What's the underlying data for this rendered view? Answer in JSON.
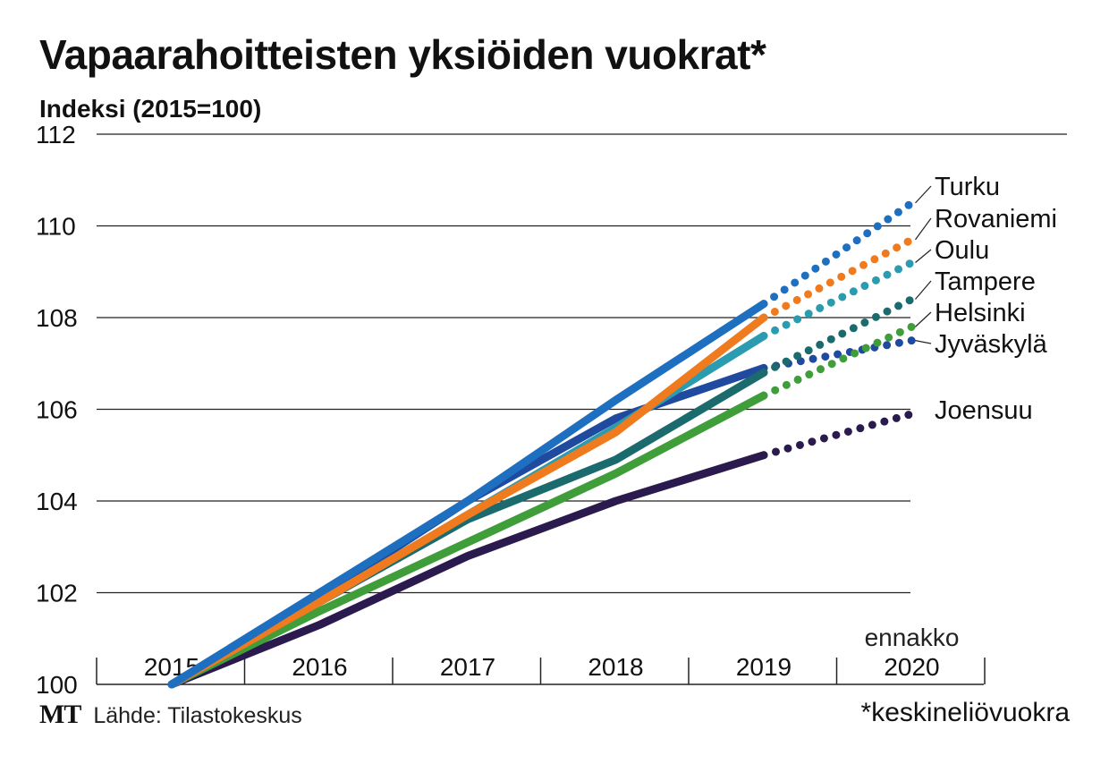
{
  "title": "Vapaarahoitteisten yksiöiden vuokrat*",
  "subtitle": "Indeksi (2015=100)",
  "source": {
    "logo": "MT",
    "text": "Lähde: Tilastokeskus"
  },
  "footnote": "*keskineliövuokra",
  "chart_data": {
    "type": "line",
    "title": "Vapaarahoitteisten yksiöiden vuokrat*",
    "ylabel": "Indeksi (2015=100)",
    "xlabel": "",
    "x": [
      "2015",
      "2016",
      "2017",
      "2018",
      "2019",
      "2020"
    ],
    "ylim": [
      100,
      112
    ],
    "yticks": [
      "100",
      "102",
      "104",
      "106",
      "108",
      "110",
      "112"
    ],
    "grid": true,
    "forecast_label": "ennakko",
    "forecast_from": "2019",
    "forecast_style": "dotted",
    "series": [
      {
        "name": "Turku",
        "color": "#1f6fc0",
        "values": [
          100,
          102.0,
          104.0,
          106.2,
          108.3,
          110.5
        ]
      },
      {
        "name": "Rovaniemi",
        "color": "#f07a1e",
        "values": [
          100,
          101.8,
          103.7,
          105.5,
          108.0,
          109.7
        ]
      },
      {
        "name": "Oulu",
        "color": "#2b9bb0",
        "values": [
          100,
          101.8,
          103.7,
          105.6,
          107.6,
          109.2
        ]
      },
      {
        "name": "Tampere",
        "color": "#1b6b6e",
        "values": [
          100,
          101.8,
          103.6,
          104.9,
          106.8,
          108.4
        ]
      },
      {
        "name": "Helsinki",
        "color": "#3f9e3a",
        "values": [
          100,
          101.6,
          103.1,
          104.6,
          106.3,
          107.8
        ]
      },
      {
        "name": "Jyväskylä",
        "color": "#1f4aa0",
        "values": [
          100,
          101.9,
          104.0,
          105.8,
          106.9,
          107.5
        ]
      },
      {
        "name": "Joensuu",
        "color": "#2a1a4e",
        "values": [
          100,
          101.3,
          102.8,
          104.0,
          105.0,
          105.9
        ]
      }
    ]
  }
}
